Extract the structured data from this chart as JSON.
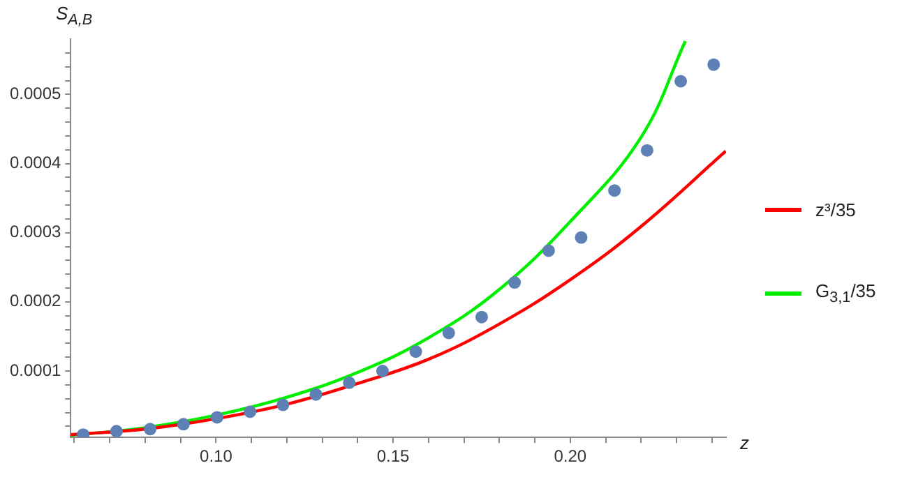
{
  "chart_data": {
    "type": "line",
    "xlabel": "z",
    "ylabel": "S$_{A,B}$",
    "xlim": [
      0.059,
      0.244
    ],
    "ylim": [
      4e-06,
      0.00058
    ],
    "xticks": [
      {
        "value": 0.06,
        "label": null
      },
      {
        "value": 0.07,
        "label": null
      },
      {
        "value": 0.08,
        "label": null
      },
      {
        "value": 0.09,
        "label": null
      },
      {
        "value": 0.1,
        "label": "0.10"
      },
      {
        "value": 0.11,
        "label": null
      },
      {
        "value": 0.12,
        "label": null
      },
      {
        "value": 0.13,
        "label": null
      },
      {
        "value": 0.14,
        "label": null
      },
      {
        "value": 0.15,
        "label": "0.15"
      },
      {
        "value": 0.16,
        "label": null
      },
      {
        "value": 0.17,
        "label": null
      },
      {
        "value": 0.18,
        "label": null
      },
      {
        "value": 0.19,
        "label": null
      },
      {
        "value": 0.2,
        "label": "0.20"
      },
      {
        "value": 0.21,
        "label": null
      },
      {
        "value": 0.22,
        "label": null
      },
      {
        "value": 0.23,
        "label": null
      },
      {
        "value": 0.24,
        "label": null
      }
    ],
    "yticks": [
      {
        "value": 2e-05,
        "label": null
      },
      {
        "value": 4e-05,
        "label": null
      },
      {
        "value": 6e-05,
        "label": null
      },
      {
        "value": 8e-05,
        "label": null
      },
      0.0001,
      {
        "value": 0.00012,
        "label": null
      },
      {
        "value": 0.00014,
        "label": null
      },
      {
        "value": 0.00016,
        "label": null
      },
      {
        "value": 0.00018,
        "label": null
      },
      0.0002,
      {
        "value": 0.00022,
        "label": null
      },
      {
        "value": 0.00024,
        "label": null
      },
      {
        "value": 0.00026,
        "label": null
      },
      {
        "value": 0.00028,
        "label": null
      },
      0.0003,
      {
        "value": 0.00032,
        "label": null
      },
      {
        "value": 0.00034,
        "label": null
      },
      {
        "value": 0.00036,
        "label": null
      },
      {
        "value": 0.00038,
        "label": null
      },
      0.0004,
      {
        "value": 0.00042,
        "label": null
      },
      {
        "value": 0.00044,
        "label": null
      },
      {
        "value": 0.00046,
        "label": null
      },
      {
        "value": 0.00048,
        "label": null
      },
      0.0005,
      {
        "value": 0.00052,
        "label": null
      },
      {
        "value": 0.00054,
        "label": null
      },
      {
        "value": 0.00056,
        "label": null
      }
    ],
    "grid": false,
    "legend": "right",
    "line_style": "solid",
    "marker": "none",
    "series": [
      {
        "name": "z³/35",
        "color": "#ff0000",
        "x": [
          0.059,
          0.08,
          0.1,
          0.12,
          0.14,
          0.16,
          0.18,
          0.2,
          0.22,
          0.2439
        ],
        "values": [
          8e-06,
          1.6e-05,
          3.1e-05,
          5.2e-05,
          8.2e-05,
          0.000117,
          0.000168,
          0.000232,
          0.000309,
          0.000418
        ]
      },
      {
        "name": "G$_{3,1}$/35",
        "color": "#00ee00",
        "x": [
          0.059,
          0.08,
          0.1,
          0.12,
          0.14,
          0.16,
          0.18,
          0.2,
          0.22,
          0.2325
        ],
        "values": [
          7e-06,
          1.8e-05,
          3.6e-05,
          6.2e-05,
          9.8e-05,
          0.000148,
          0.000218,
          0.000316,
          0.000438,
          0.000577
        ]
      },
      {
        "type": "scatter",
        "color": "#5e81b5",
        "marker": "circle",
        "x": [
          0.0625,
          0.0719,
          0.0814,
          0.0908,
          0.1003,
          0.1096,
          0.1189,
          0.1282,
          0.1376,
          0.147,
          0.1564,
          0.1657,
          0.175,
          0.1843,
          0.1939,
          0.2031,
          0.2125,
          0.2217,
          0.2312,
          0.2405
        ],
        "values": [
          8e-06,
          1.3e-05,
          1.6e-05,
          2.3e-05,
          3.3e-05,
          4.1e-05,
          5.1e-05,
          6.6e-05,
          8.3e-05,
          0.0001,
          0.000128,
          0.000155,
          0.000178,
          0.000228,
          0.000274,
          0.000293,
          0.000361,
          0.000419,
          0.000519,
          0.000543
        ]
      }
    ]
  }
}
